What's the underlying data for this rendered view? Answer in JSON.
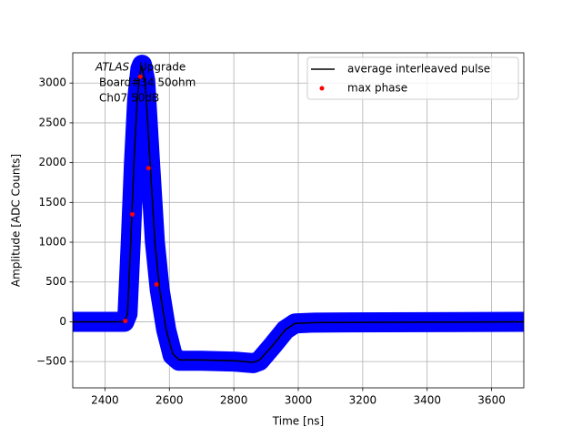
{
  "chart_data": {
    "type": "line",
    "xlabel": "Time [ns]",
    "ylabel": "Amplitude [ADC Counts]",
    "annotation": {
      "experiment": "ATLAS",
      "lines": [
        "Upgrade",
        "Board#34 50ohm",
        "Ch07 50dB"
      ]
    },
    "xlim": [
      2300,
      3700
    ],
    "ylim": [
      -830,
      3380
    ],
    "xticks": [
      2400,
      2600,
      2800,
      3000,
      3200,
      3400,
      3600
    ],
    "yticks": [
      {
        "value": -500,
        "label": "−500"
      },
      0,
      500,
      1000,
      1500,
      2000,
      2500,
      3000
    ],
    "grid": true,
    "legend": "upper right",
    "series": [
      {
        "color": "#0000ff",
        "kind": "band",
        "x": [
          2300,
          2460,
          2470,
          2480,
          2490,
          2500,
          2510,
          2515,
          2525,
          2540,
          2555,
          2570,
          2590,
          2610,
          2630,
          2700,
          2800,
          2860,
          2880,
          2920,
          2960,
          2990,
          3050,
          3700
        ],
        "y": [
          0,
          0,
          100,
          1000,
          2000,
          2800,
          3180,
          3230,
          3030,
          2000,
          1000,
          400,
          -100,
          -420,
          -490,
          -490,
          -500,
          -520,
          -490,
          -300,
          -100,
          -20,
          -10,
          0
        ]
      },
      {
        "name": "average interleaved pulse",
        "color": "#000000",
        "kind": "line",
        "x": [
          2300,
          2460,
          2470,
          2480,
          2490,
          2500,
          2510,
          2515,
          2525,
          2540,
          2555,
          2570,
          2590,
          2610,
          2630,
          2700,
          2800,
          2860,
          2880,
          2920,
          2960,
          2990,
          3050,
          3700
        ],
        "y": [
          0,
          0,
          100,
          1000,
          2000,
          2800,
          3150,
          3200,
          3000,
          2000,
          1000,
          400,
          -100,
          -400,
          -480,
          -480,
          -490,
          -510,
          -480,
          -300,
          -100,
          -20,
          -10,
          0
        ]
      },
      {
        "name": "max phase",
        "color": "#ff0000",
        "kind": "points",
        "x": [
          2463,
          2485,
          2510,
          2535,
          2560
        ],
        "y": [
          10,
          1350,
          3080,
          1930,
          470
        ]
      }
    ]
  }
}
